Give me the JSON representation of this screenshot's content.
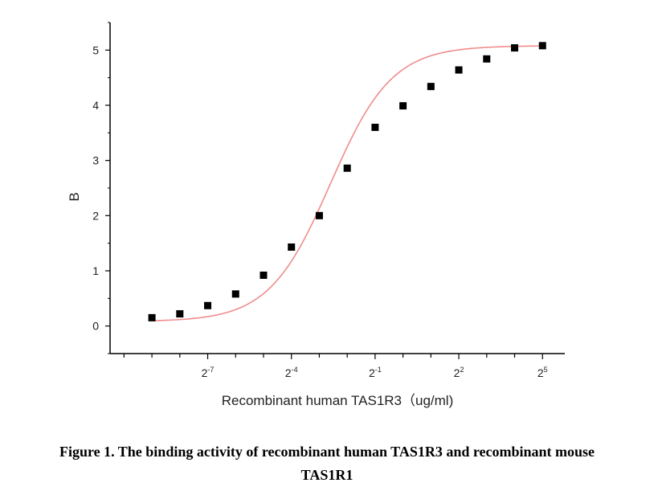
{
  "chart_data": {
    "type": "scatter",
    "xlabel": "Recombinant human  TAS1R3（ug/ml)",
    "ylabel": "B",
    "x_scale": "log2",
    "xlim": [
      -10.5,
      5.8
    ],
    "ylim": [
      -0.5,
      5.5
    ],
    "yticks": [
      0,
      1,
      2,
      3,
      4,
      5
    ],
    "xticks": [
      {
        "value": -7,
        "base": "2",
        "exp": "-7"
      },
      {
        "value": -4,
        "base": "2",
        "exp": "-4"
      },
      {
        "value": -1,
        "base": "2",
        "exp": "-1"
      },
      {
        "value": 2,
        "base": "2",
        "exp": "2"
      },
      {
        "value": 5,
        "base": "2",
        "exp": "5"
      }
    ],
    "series": [
      {
        "marker": "square",
        "x": [
          -9,
          -8,
          -7,
          -6,
          -5,
          -4,
          -3,
          -2,
          -1,
          0,
          1,
          2,
          3,
          4,
          5
        ],
        "y": [
          0.15,
          0.22,
          0.37,
          0.58,
          0.92,
          1.43,
          2.0,
          2.86,
          3.6,
          3.99,
          4.34,
          4.64,
          4.84,
          5.04,
          5.08
        ]
      }
    ],
    "fit": {
      "type": "logistic",
      "color": "#f08c8c"
    },
    "colors": {
      "marker": "#000000",
      "axis": "#000000",
      "fit": "#f08c8c"
    },
    "grid": false,
    "legend": "none"
  },
  "caption": {
    "line1": "Figure 1. The binding activity of recombinant human TAS1R3 and recombinant mouse",
    "line2": "TAS1R1"
  }
}
